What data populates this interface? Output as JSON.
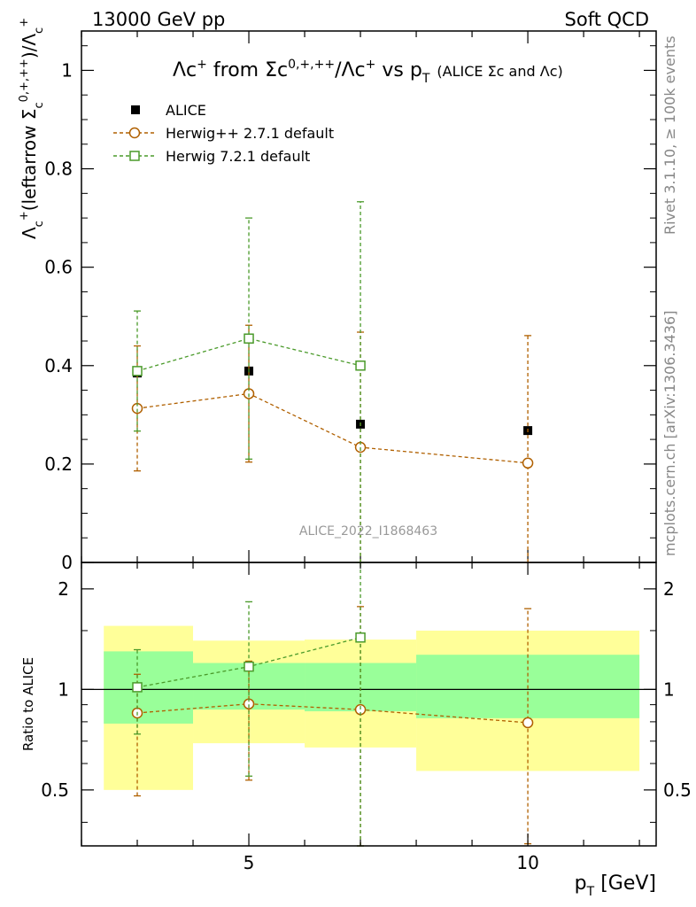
{
  "header": {
    "energy_label": "13000 GeV pp",
    "category_label": "Soft QCD"
  },
  "side_labels": {
    "rivet": "Rivet 3.1.10, ≥ 100k events",
    "mcplots": "mcplots.cern.ch [arXiv:1306.3436]"
  },
  "chart_data": [
    {
      "type": "scatter",
      "title": "Λc⁺ from Σc⁰ʸ⁺ʸ⁺⁺/Λc⁺ vs p_T (ALICE Σc and Λc)",
      "title_main": "Λc",
      "title_from": " from ",
      "title_sigma": "Σc",
      "title_sup2": "0,+,++",
      "title_mid": "/Λc",
      "title_vs": " vs p",
      "title_sub": "T",
      "title_small": "(ALICE Σc and Λc)",
      "ylabel": "Λc⁺(leftarrow Σc⁰ʸ⁺ʸ⁺⁺)/Λc⁺",
      "ylabel_a": "Λ",
      "ylabel_b": "(leftarrow Σ",
      "ylabel_c": ")/Λ",
      "ylabel_sup_c": "0,+,++",
      "xlim": [
        2,
        12.3
      ],
      "ylim": [
        0,
        1.08
      ],
      "yticks": [
        0,
        0.2,
        0.4,
        0.6,
        0.8,
        1
      ],
      "yticklabels": [
        "0",
        "0.2",
        "0.4",
        "0.6",
        "0.8",
        "1"
      ],
      "watermark": "ALICE_2022_I1868463",
      "legend_position": "top-left",
      "series": [
        {
          "name": "ALICE",
          "color": "#000000",
          "marker": "filled-square",
          "x": [
            3,
            5,
            7,
            10
          ],
          "y": [
            0.385,
            0.389,
            0.281,
            0.268
          ],
          "yerr_low": [
            0.0,
            0.0,
            0.0,
            0.0
          ],
          "yerr_high": [
            0.0,
            0.0,
            0.0,
            0.0
          ]
        },
        {
          "name": "Herwig++ 2.7.1 default",
          "color": "#b06000",
          "marker": "open-circle",
          "x": [
            3,
            5,
            7,
            10
          ],
          "y": [
            0.313,
            0.343,
            0.234,
            0.202
          ],
          "yerr_low": [
            0.127,
            0.139,
            0.234,
            0.202
          ],
          "yerr_high": [
            0.127,
            0.139,
            0.234,
            0.259
          ]
        },
        {
          "name": "Herwig 7.2.1 default",
          "color": "#4a9a2a",
          "marker": "open-square",
          "x": [
            3,
            5,
            7,
            10
          ],
          "y": [
            0.389,
            0.455,
            0.4,
            null
          ],
          "yerr_low": [
            0.122,
            0.245,
            0.4,
            null
          ],
          "yerr_high": [
            0.122,
            0.245,
            0.333,
            null
          ]
        }
      ]
    },
    {
      "type": "scatter",
      "ylabel": "Ratio to ALICE",
      "xlabel": "p_T [GeV]",
      "xlabel_main": "p",
      "xlabel_sub": "T",
      "xlabel_unit": " [GeV]",
      "xlim": [
        2,
        12.3
      ],
      "ylim": [
        0.34,
        2.4
      ],
      "ylog": true,
      "xticks": [
        5,
        10
      ],
      "xticklabels": [
        "5",
        "10"
      ],
      "yticks": [
        0.5,
        1,
        2
      ],
      "yticklabels": [
        "0.5",
        "1",
        "2"
      ],
      "bands": [
        {
          "x0": 2.4,
          "x1": 4,
          "y_inner": [
            0.79,
            1.3
          ],
          "y_outer": [
            0.5,
            1.55
          ]
        },
        {
          "x0": 4,
          "x1": 6,
          "y_inner": [
            0.87,
            1.2
          ],
          "y_outer": [
            0.69,
            1.4
          ]
        },
        {
          "x0": 6,
          "x1": 8,
          "y_inner": [
            0.86,
            1.2
          ],
          "y_outer": [
            0.67,
            1.41
          ]
        },
        {
          "x0": 8,
          "x1": 12,
          "y_inner": [
            0.82,
            1.27
          ],
          "y_outer": [
            0.57,
            1.5
          ]
        }
      ],
      "series": [
        {
          "name": "Herwig++ 2.7.1 default",
          "color": "#b06000",
          "marker": "open-circle",
          "x": [
            3,
            5,
            7,
            10
          ],
          "y": [
            0.85,
            0.905,
            0.87,
            0.795
          ],
          "yerr_low": [
            0.37,
            0.37,
            0.55,
            0.45
          ],
          "yerr_high": [
            0.26,
            0.31,
            0.9,
            0.95
          ]
        },
        {
          "name": "Herwig 7.2.1 default",
          "color": "#4a9a2a",
          "marker": "open-square",
          "x": [
            3,
            5,
            7
          ],
          "y": [
            1.015,
            1.17,
            1.43
          ],
          "yerr_low": [
            0.28,
            0.62,
            1.1
          ],
          "yerr_high": [
            0.3,
            0.66,
            1.0
          ]
        }
      ]
    }
  ]
}
